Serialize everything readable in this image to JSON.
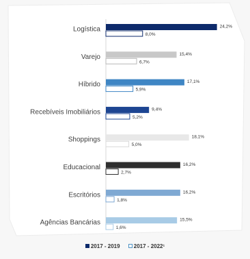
{
  "chart_data": {
    "type": "bar",
    "orientation": "horizontal",
    "categories": [
      "Logística",
      "Varejo",
      "Híbrido",
      "Recebíveis Imobiliários",
      "Shoppings",
      "Educacional",
      "Escritórios",
      "Agências Bancárias"
    ],
    "series": [
      {
        "name": "2017 - 2019",
        "values": [
          24.2,
          15.4,
          17.1,
          9.4,
          18.1,
          16.2,
          16.2,
          15.5
        ],
        "labels": [
          "24,2%",
          "15,4%",
          "17,1%",
          "9,4%",
          "18,1%",
          "16,2%",
          "16,2%",
          "15,5%"
        ],
        "colors": [
          "#0d2a6b",
          "#c8c8c8",
          "#3f86c4",
          "#1d4592",
          "#e8e8e8",
          "#2f2f2f",
          "#7fa9d3",
          "#a8cbe6"
        ]
      },
      {
        "name": "2017 - 2022¹",
        "values": [
          8.0,
          6.7,
          5.9,
          5.2,
          5.0,
          2.7,
          1.8,
          1.6
        ],
        "labels": [
          "8,0%",
          "6,7%",
          "5,9%",
          "5,2%",
          "5,0%",
          "2,7%",
          "1,8%",
          "1,6%"
        ],
        "colors": [
          "#0d2a6b",
          "#b8b8b8",
          "#3f86c4",
          "#1d4592",
          "#d8d8d8",
          "#2f2f2f",
          "#7fa9d3",
          "#a8cbe6"
        ]
      }
    ],
    "xlim": [
      0,
      25
    ],
    "grid": false,
    "legend_position": "bottom"
  },
  "legend": {
    "a": "2017 - 2019",
    "b": "2017 - 2022¹"
  }
}
